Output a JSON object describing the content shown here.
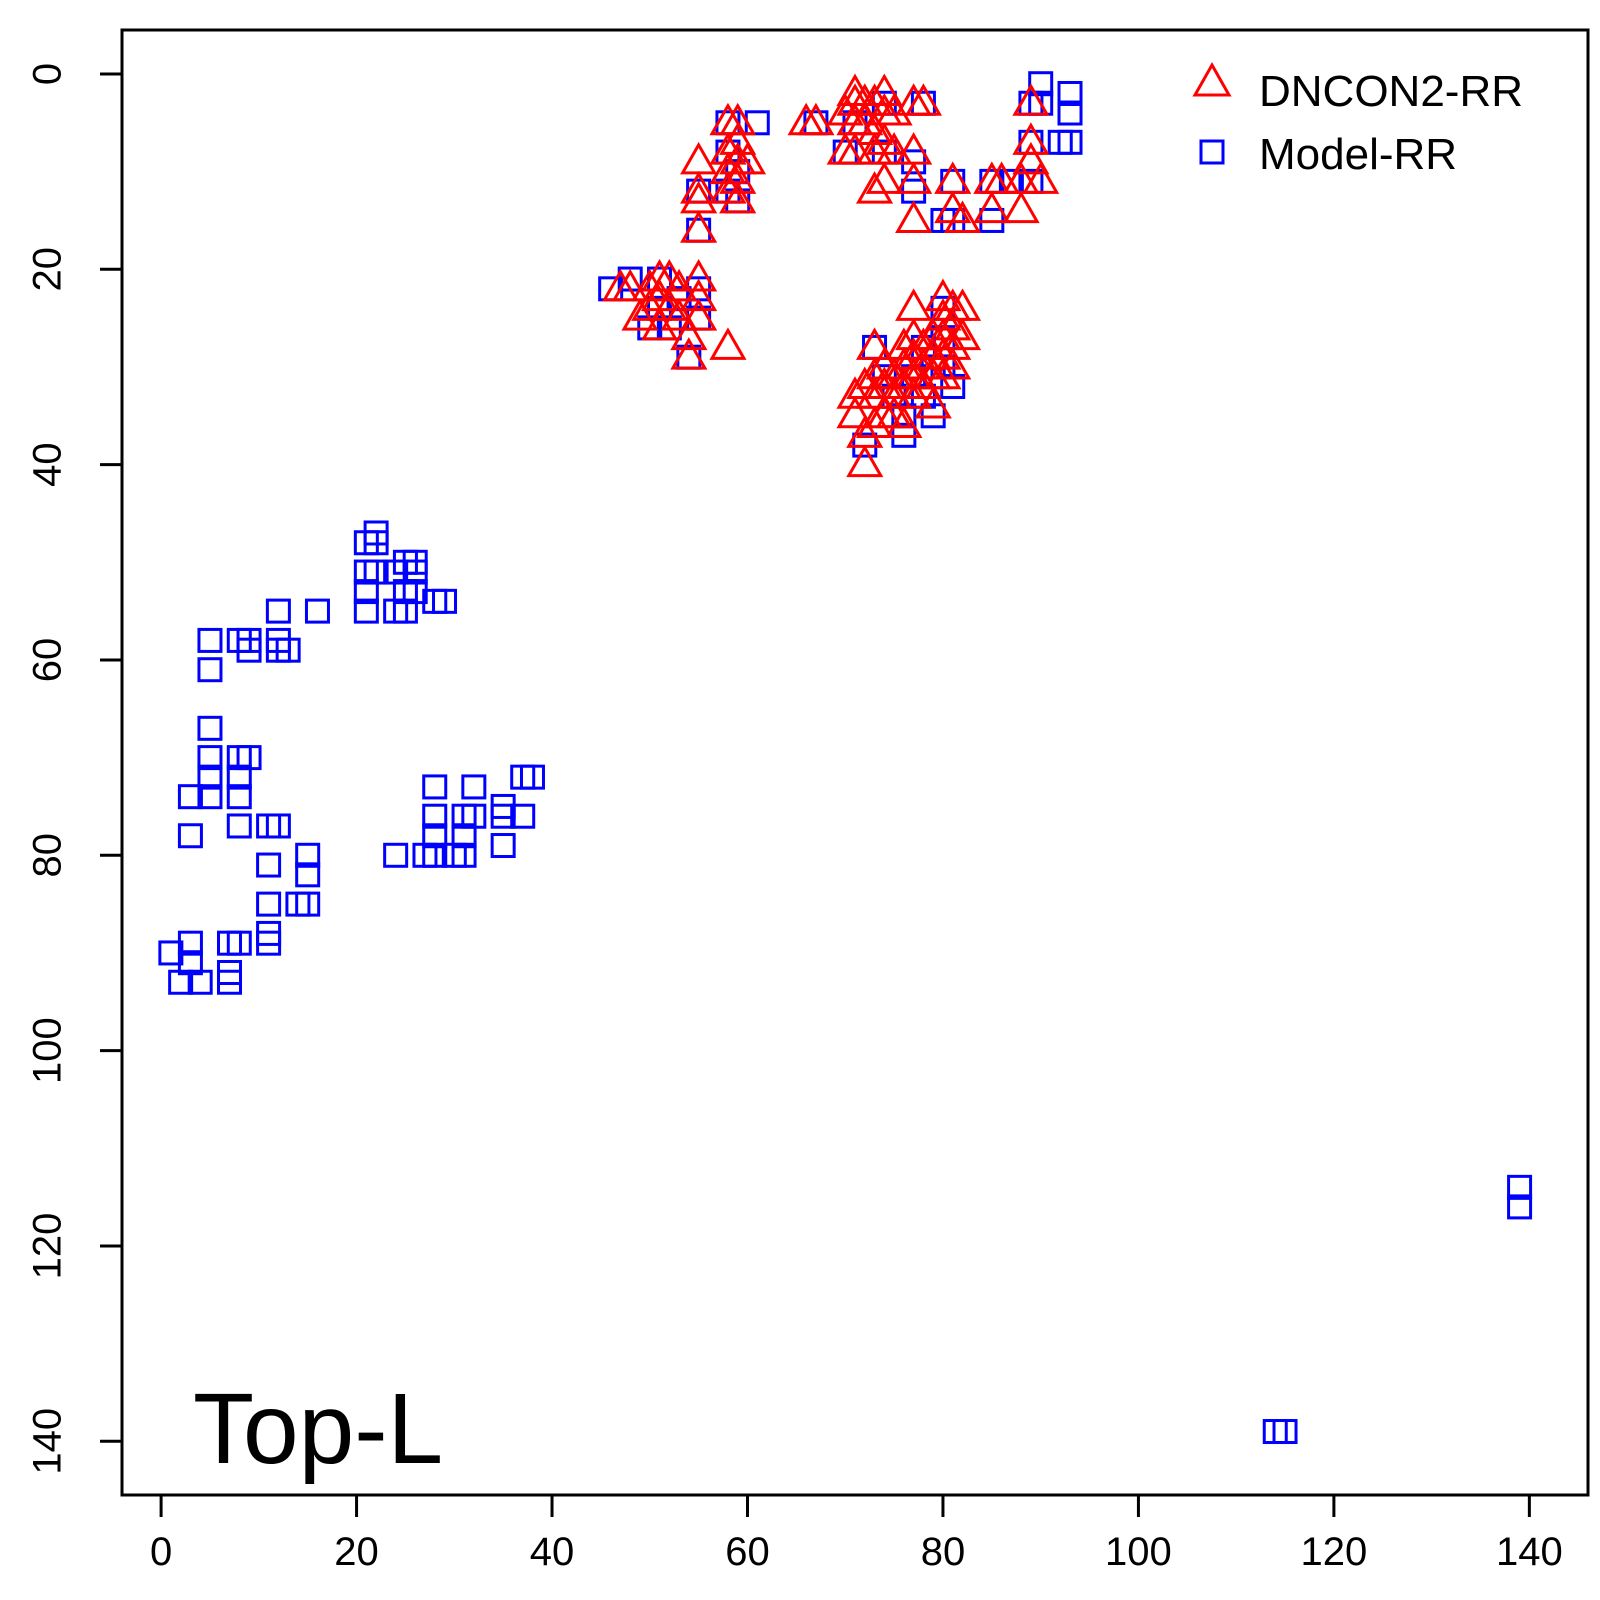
{
  "chart_data": {
    "type": "scatter",
    "title": "",
    "xlabel": "",
    "ylabel": "",
    "xlim": [
      -4,
      146
    ],
    "ylim": [
      -4.5,
      145.5
    ],
    "y_reversed": true,
    "xticks": [
      0,
      20,
      40,
      60,
      80,
      100,
      120,
      140
    ],
    "yticks": [
      0,
      20,
      40,
      60,
      80,
      100,
      120,
      140
    ],
    "grid": false,
    "legend_position": "top-right",
    "annotation": "Top-L",
    "series": [
      {
        "name": "DNCON2-RR",
        "marker": "triangle",
        "color": "#ff0000",
        "points": [
          [
            47,
            22
          ],
          [
            48,
            22
          ],
          [
            49,
            25
          ],
          [
            50,
            24
          ],
          [
            50,
            22
          ],
          [
            51,
            21
          ],
          [
            51,
            23
          ],
          [
            51,
            26
          ],
          [
            52,
            21
          ],
          [
            52,
            24
          ],
          [
            53,
            22
          ],
          [
            53,
            25
          ],
          [
            54,
            27
          ],
          [
            54,
            29
          ],
          [
            55,
            21
          ],
          [
            55,
            23
          ],
          [
            55,
            25
          ],
          [
            55,
            9
          ],
          [
            55,
            12
          ],
          [
            55,
            13
          ],
          [
            55,
            16
          ],
          [
            58,
            28
          ],
          [
            58,
            5
          ],
          [
            58,
            8
          ],
          [
            58,
            10
          ],
          [
            58,
            12
          ],
          [
            59,
            5
          ],
          [
            59,
            7
          ],
          [
            59,
            9
          ],
          [
            59,
            11
          ],
          [
            59,
            13
          ],
          [
            60,
            9
          ],
          [
            66,
            5
          ],
          [
            67,
            5
          ],
          [
            70,
            4
          ],
          [
            70,
            8
          ],
          [
            71,
            2
          ],
          [
            71,
            3
          ],
          [
            71,
            5
          ],
          [
            71,
            8
          ],
          [
            72,
            3
          ],
          [
            72,
            5
          ],
          [
            73,
            3
          ],
          [
            73,
            6
          ],
          [
            73,
            8
          ],
          [
            73,
            12
          ],
          [
            74,
            2
          ],
          [
            74,
            4
          ],
          [
            74,
            7
          ],
          [
            74,
            11
          ],
          [
            75,
            4
          ],
          [
            75,
            8
          ],
          [
            77,
            3
          ],
          [
            77,
            8
          ],
          [
            77,
            11
          ],
          [
            77,
            15
          ],
          [
            78,
            3
          ],
          [
            81,
            11
          ],
          [
            81,
            14
          ],
          [
            82,
            15
          ],
          [
            85,
            11
          ],
          [
            85,
            14
          ],
          [
            86,
            11
          ],
          [
            88,
            11
          ],
          [
            88,
            14
          ],
          [
            89,
            3
          ],
          [
            89,
            7
          ],
          [
            89,
            9
          ],
          [
            90,
            11
          ],
          [
            71,
            35
          ],
          [
            71,
            33
          ],
          [
            72,
            40
          ],
          [
            72,
            37
          ],
          [
            72,
            32
          ],
          [
            73,
            28
          ],
          [
            73,
            31
          ],
          [
            73,
            33
          ],
          [
            73,
            36
          ],
          [
            74,
            32
          ],
          [
            74,
            35
          ],
          [
            74,
            30
          ],
          [
            75,
            35
          ],
          [
            75,
            31
          ],
          [
            75,
            33
          ],
          [
            76,
            28
          ],
          [
            76,
            30
          ],
          [
            76,
            32
          ],
          [
            76,
            36
          ],
          [
            77,
            24
          ],
          [
            77,
            27
          ],
          [
            77,
            29
          ],
          [
            77,
            31
          ],
          [
            77,
            33
          ],
          [
            78,
            28
          ],
          [
            78,
            30
          ],
          [
            78,
            32
          ],
          [
            79,
            27
          ],
          [
            79,
            29
          ],
          [
            79,
            31
          ],
          [
            79,
            34
          ],
          [
            80,
            23
          ],
          [
            80,
            25
          ],
          [
            80,
            27
          ],
          [
            80,
            29
          ],
          [
            80,
            31
          ],
          [
            81,
            24
          ],
          [
            81,
            26
          ],
          [
            81,
            28
          ],
          [
            81,
            30
          ],
          [
            82,
            24
          ],
          [
            82,
            27
          ]
        ]
      },
      {
        "name": "Model-RR",
        "marker": "square",
        "color": "#0000ff",
        "points": [
          [
            46,
            22
          ],
          [
            48,
            21
          ],
          [
            50,
            26
          ],
          [
            51,
            21
          ],
          [
            51,
            24
          ],
          [
            52,
            26
          ],
          [
            53,
            23
          ],
          [
            54,
            29
          ],
          [
            55,
            12
          ],
          [
            55,
            16
          ],
          [
            55,
            22
          ],
          [
            55,
            25
          ],
          [
            58,
            5
          ],
          [
            58,
            8
          ],
          [
            58,
            12
          ],
          [
            59,
            10
          ],
          [
            59,
            13
          ],
          [
            61,
            5
          ],
          [
            67,
            5
          ],
          [
            70,
            8
          ],
          [
            71,
            5
          ],
          [
            74,
            3
          ],
          [
            74,
            8
          ],
          [
            77,
            9
          ],
          [
            77,
            12
          ],
          [
            78,
            3
          ],
          [
            80,
            15
          ],
          [
            81,
            11
          ],
          [
            81,
            15
          ],
          [
            85,
            11
          ],
          [
            85,
            15
          ],
          [
            87,
            11
          ],
          [
            89,
            3
          ],
          [
            89,
            7
          ],
          [
            89,
            11
          ],
          [
            90,
            1
          ],
          [
            90,
            3
          ],
          [
            92,
            7
          ],
          [
            93,
            2
          ],
          [
            93,
            4
          ],
          [
            93,
            7
          ],
          [
            72,
            38
          ],
          [
            73,
            28
          ],
          [
            74,
            31
          ],
          [
            75,
            33
          ],
          [
            76,
            35
          ],
          [
            76,
            37
          ],
          [
            77,
            31
          ],
          [
            78,
            28
          ],
          [
            78,
            33
          ],
          [
            79,
            30
          ],
          [
            79,
            35
          ],
          [
            80,
            24
          ],
          [
            80,
            27
          ],
          [
            80,
            30
          ],
          [
            81,
            32
          ],
          [
            21,
            48
          ],
          [
            21,
            51
          ],
          [
            21,
            53
          ],
          [
            21,
            55
          ],
          [
            22,
            47
          ],
          [
            22,
            48
          ],
          [
            22,
            51
          ],
          [
            24,
            51
          ],
          [
            24,
            55
          ],
          [
            25,
            50
          ],
          [
            25,
            53
          ],
          [
            25,
            55
          ],
          [
            26,
            50
          ],
          [
            26,
            51
          ],
          [
            26,
            53
          ],
          [
            28,
            54
          ],
          [
            29,
            54
          ],
          [
            16,
            55
          ],
          [
            12,
            55
          ],
          [
            5,
            58
          ],
          [
            5,
            61
          ],
          [
            8,
            58
          ],
          [
            9,
            58
          ],
          [
            9,
            59
          ],
          [
            12,
            58
          ],
          [
            12,
            59
          ],
          [
            13,
            59
          ],
          [
            5,
            67
          ],
          [
            5,
            70
          ],
          [
            5,
            72
          ],
          [
            5,
            74
          ],
          [
            8,
            70
          ],
          [
            9,
            70
          ],
          [
            8,
            72
          ],
          [
            8,
            74
          ],
          [
            8,
            77
          ],
          [
            3,
            74
          ],
          [
            3,
            78
          ],
          [
            11,
            77
          ],
          [
            12,
            77
          ],
          [
            11,
            81
          ],
          [
            15,
            80
          ],
          [
            15,
            82
          ],
          [
            11,
            85
          ],
          [
            14,
            85
          ],
          [
            15,
            85
          ],
          [
            11,
            88
          ],
          [
            11,
            89
          ],
          [
            1,
            90
          ],
          [
            3,
            89
          ],
          [
            3,
            91
          ],
          [
            2,
            93
          ],
          [
            4,
            93
          ],
          [
            7,
            89
          ],
          [
            8,
            89
          ],
          [
            7,
            92
          ],
          [
            7,
            93
          ],
          [
            24,
            80
          ],
          [
            27,
            80
          ],
          [
            28,
            73
          ],
          [
            28,
            76
          ],
          [
            28,
            78
          ],
          [
            28,
            80
          ],
          [
            30,
            80
          ],
          [
            31,
            76
          ],
          [
            31,
            78
          ],
          [
            31,
            80
          ],
          [
            32,
            73
          ],
          [
            32,
            76
          ],
          [
            35,
            75
          ],
          [
            35,
            76
          ],
          [
            35,
            79
          ],
          [
            37,
            72
          ],
          [
            37,
            76
          ],
          [
            38,
            72
          ],
          [
            139,
            114
          ],
          [
            139,
            116
          ],
          [
            114,
            139
          ],
          [
            115,
            139
          ]
        ]
      }
    ]
  }
}
